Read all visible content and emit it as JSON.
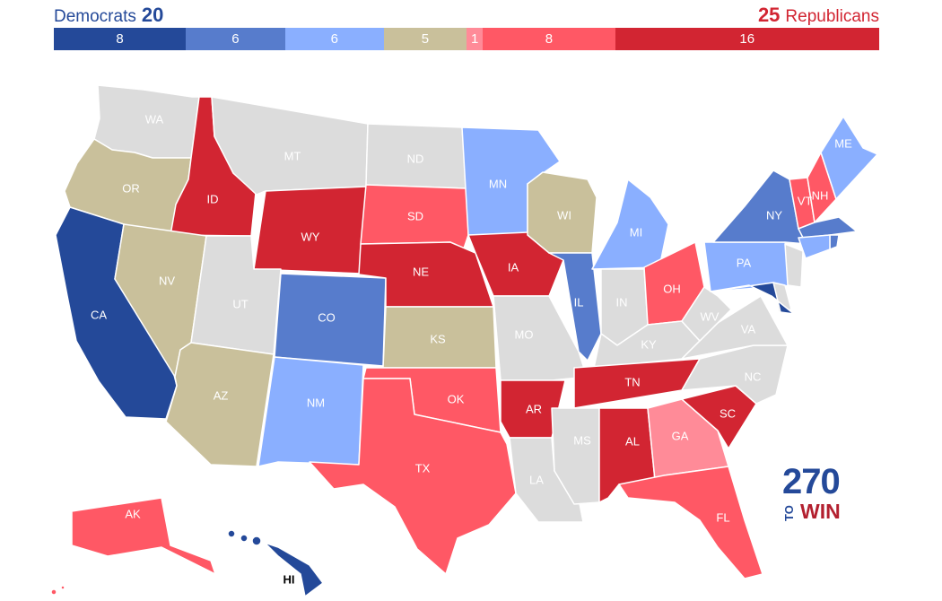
{
  "header": {
    "dem_label": "Democrats",
    "dem_total": "20",
    "rep_total": "25",
    "rep_label": "Republicans"
  },
  "colors": {
    "safe_dem": "#244999",
    "likely_dem": "#577ccc",
    "lean_dem": "#8aafff",
    "tossup": "#c9c09b",
    "tilt_rep": "#ff8b98",
    "likely_rep": "#ff5865",
    "safe_rep": "#d22532",
    "no_race": "#dcdcdc"
  },
  "bar": [
    {
      "category": "safe_dem",
      "count": "8"
    },
    {
      "category": "likely_dem",
      "count": "6"
    },
    {
      "category": "lean_dem",
      "count": "6"
    },
    {
      "category": "tossup",
      "count": "5"
    },
    {
      "category": "tilt_rep",
      "count": "1"
    },
    {
      "category": "likely_rep",
      "count": "8"
    },
    {
      "category": "safe_rep",
      "count": "16"
    }
  ],
  "states": [
    {
      "abbr": "WA",
      "rating": "no_race"
    },
    {
      "abbr": "OR",
      "rating": "tossup"
    },
    {
      "abbr": "CA",
      "rating": "safe_dem"
    },
    {
      "abbr": "ID",
      "rating": "safe_rep"
    },
    {
      "abbr": "NV",
      "rating": "tossup"
    },
    {
      "abbr": "MT",
      "rating": "no_race"
    },
    {
      "abbr": "WY",
      "rating": "safe_rep"
    },
    {
      "abbr": "UT",
      "rating": "no_race"
    },
    {
      "abbr": "AZ",
      "rating": "tossup"
    },
    {
      "abbr": "CO",
      "rating": "likely_dem"
    },
    {
      "abbr": "NM",
      "rating": "lean_dem"
    },
    {
      "abbr": "ND",
      "rating": "no_race"
    },
    {
      "abbr": "SD",
      "rating": "likely_rep"
    },
    {
      "abbr": "NE",
      "rating": "safe_rep"
    },
    {
      "abbr": "KS",
      "rating": "tossup"
    },
    {
      "abbr": "OK",
      "rating": "likely_rep"
    },
    {
      "abbr": "TX",
      "rating": "likely_rep"
    },
    {
      "abbr": "MN",
      "rating": "lean_dem"
    },
    {
      "abbr": "IA",
      "rating": "safe_rep"
    },
    {
      "abbr": "MO",
      "rating": "no_race"
    },
    {
      "abbr": "AR",
      "rating": "safe_rep"
    },
    {
      "abbr": "LA",
      "rating": "no_race"
    },
    {
      "abbr": "WI",
      "rating": "tossup"
    },
    {
      "abbr": "IL",
      "rating": "likely_dem"
    },
    {
      "abbr": "MI",
      "rating": "lean_dem"
    },
    {
      "abbr": "IN",
      "rating": "no_race"
    },
    {
      "abbr": "OH",
      "rating": "likely_rep"
    },
    {
      "abbr": "KY",
      "rating": "no_race"
    },
    {
      "abbr": "TN",
      "rating": "safe_rep"
    },
    {
      "abbr": "MS",
      "rating": "no_race"
    },
    {
      "abbr": "AL",
      "rating": "safe_rep"
    },
    {
      "abbr": "GA",
      "rating": "tilt_rep"
    },
    {
      "abbr": "FL",
      "rating": "likely_rep"
    },
    {
      "abbr": "SC",
      "rating": "safe_rep"
    },
    {
      "abbr": "NC",
      "rating": "no_race"
    },
    {
      "abbr": "VA",
      "rating": "no_race"
    },
    {
      "abbr": "WV",
      "rating": "no_race"
    },
    {
      "abbr": "PA",
      "rating": "lean_dem"
    },
    {
      "abbr": "NY",
      "rating": "likely_dem"
    },
    {
      "abbr": "VT",
      "rating": "likely_rep"
    },
    {
      "abbr": "NH",
      "rating": "likely_rep"
    },
    {
      "abbr": "ME",
      "rating": "lean_dem"
    },
    {
      "abbr": "MA",
      "rating": "likely_dem"
    },
    {
      "abbr": "RI",
      "rating": "likely_dem"
    },
    {
      "abbr": "CT",
      "rating": "lean_dem"
    },
    {
      "abbr": "NJ",
      "rating": "no_race"
    },
    {
      "abbr": "DE",
      "rating": "no_race"
    },
    {
      "abbr": "MD",
      "rating": "safe_dem"
    },
    {
      "abbr": "AK",
      "rating": "likely_rep"
    },
    {
      "abbr": "HI",
      "rating": "safe_dem"
    }
  ],
  "logo": {
    "number": "270",
    "to": "TO",
    "win": "WIN"
  }
}
